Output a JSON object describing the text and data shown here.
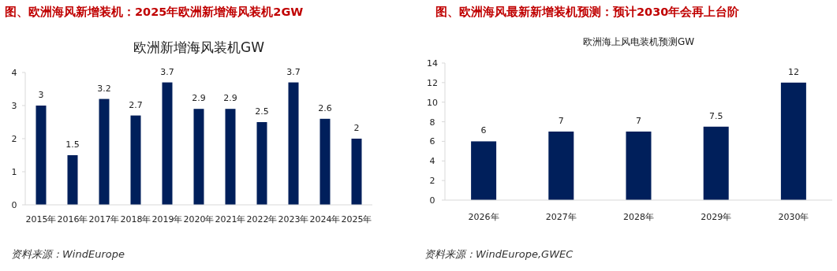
{
  "chart_data": [
    {
      "type": "bar",
      "title": "图、欧洲海风新增装机：2025年欧洲新增海风装机2GW",
      "subtitle": "欧洲新增海风装机GW",
      "categories": [
        "2015年",
        "2016年",
        "2017年",
        "2018年",
        "2019年",
        "2020年",
        "2021年",
        "2022年",
        "2023年",
        "2024年",
        "2025年"
      ],
      "values": [
        3,
        1.5,
        3.2,
        2.7,
        3.7,
        2.9,
        2.9,
        2.5,
        3.7,
        2.6,
        2
      ],
      "color": "#001f5b",
      "ylim": [
        0,
        4
      ],
      "yticks": [
        0,
        1,
        2,
        3,
        4
      ],
      "data_labels": true,
      "grid": false,
      "annotations": [
        "资料来源：WindEurope"
      ]
    },
    {
      "type": "bar",
      "title": "图、欧洲海风最新新增装机预测：预计2030年会再上台阶",
      "subtitle": "欧洲海上风电装机预测GW",
      "categories": [
        "2026年",
        "2027年",
        "2028年",
        "2029年",
        "2030年"
      ],
      "values": [
        6,
        7,
        7,
        7.5,
        12
      ],
      "color": "#001f5b",
      "ylim": [
        0,
        14
      ],
      "yticks": [
        0,
        2,
        4,
        6,
        8,
        10,
        12,
        14
      ],
      "data_labels": true,
      "grid": false,
      "annotations": [
        "资料来源：WindEurope,GWEC"
      ]
    }
  ]
}
